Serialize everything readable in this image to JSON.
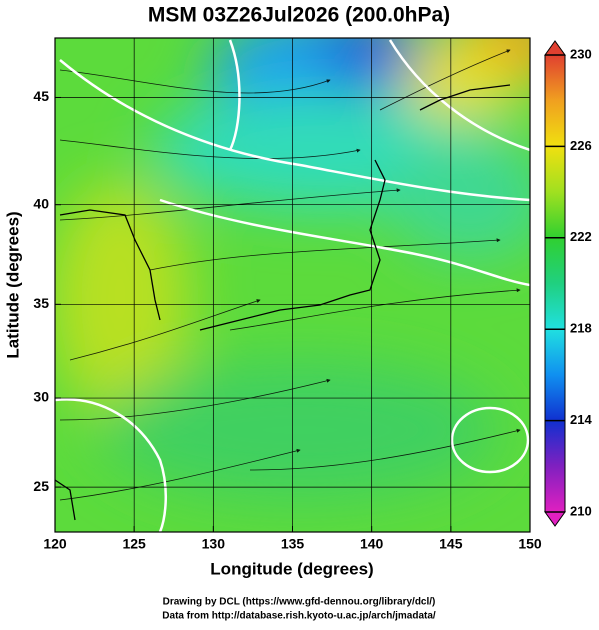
{
  "chart_data": {
    "type": "map",
    "title": "MSM 03Z26Jul2026 (200.0hPa)",
    "x_label": "Longitude (degrees)",
    "y_label": "Latitude  (degrees)",
    "projection": "mercator",
    "xlim": [
      120,
      150
    ],
    "xticks": [
      120,
      125,
      130,
      135,
      140,
      145,
      150
    ],
    "ylim": [
      22.4,
      47.6
    ],
    "yticks": [
      25,
      30,
      35,
      40,
      45
    ],
    "grid": true,
    "colorbar": {
      "lim": [
        210,
        230
      ],
      "ticks": [
        210,
        214,
        218,
        222,
        226,
        230
      ],
      "colors": [
        "#e020c0",
        "#8020c0",
        "#1030d0",
        "#1090f0",
        "#20e0e0",
        "#20d080",
        "#30d030",
        "#a0e020",
        "#f0e010",
        "#f0a020",
        "#e04030"
      ]
    },
    "footer": [
      "Drawing by DCL (https://www.gfd-dennou.org/library/dcl/)",
      "Data from http://database.rish.kyoto-u.ac.jp/arch/jmadata/"
    ]
  }
}
